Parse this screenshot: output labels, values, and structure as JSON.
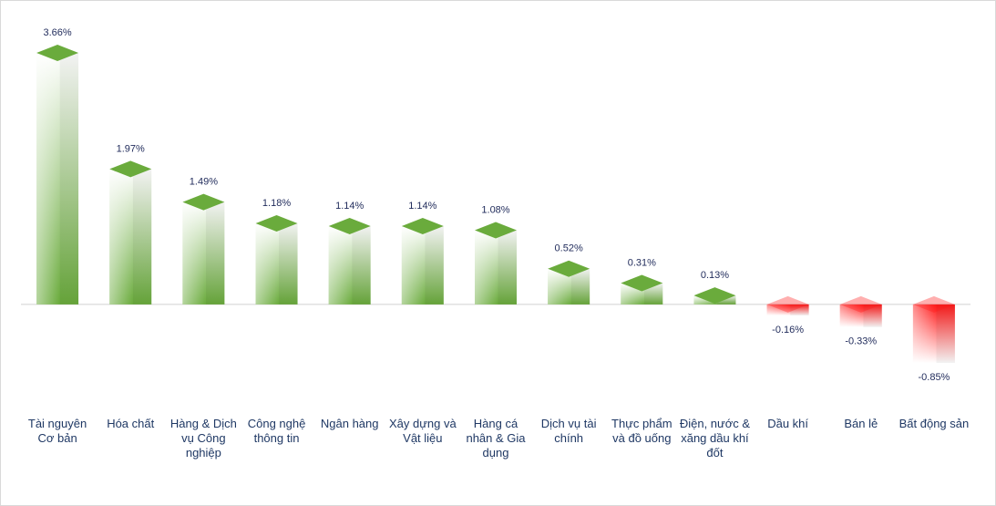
{
  "chart_data": {
    "type": "bar",
    "categories": [
      "Tài nguyên Cơ bản",
      "Hóa chất",
      "Hàng & Dịch vụ Công nghiệp",
      "Công nghệ thông tin",
      "Ngân hàng",
      "Xây dựng và Vật liệu",
      "Hàng cá nhân & Gia dụng",
      "Dịch vụ tài chính",
      "Thực phẩm và đồ uống",
      "Điện, nước & xăng dầu khí đốt",
      "Dầu khí",
      "Bán lẻ",
      "Bất động sản"
    ],
    "values": [
      3.66,
      1.97,
      1.49,
      1.18,
      1.14,
      1.14,
      1.08,
      0.52,
      0.31,
      0.13,
      -0.16,
      -0.33,
      -0.85
    ],
    "value_labels": [
      "3.66%",
      "1.97%",
      "1.49%",
      "1.18%",
      "1.14%",
      "1.14%",
      "1.08%",
      "0.52%",
      "0.31%",
      "0.13%",
      "-0.16%",
      "-0.33%",
      "-0.85%"
    ],
    "color": "#6aab3c",
    "negative_color": "#ff1a1a"
  }
}
